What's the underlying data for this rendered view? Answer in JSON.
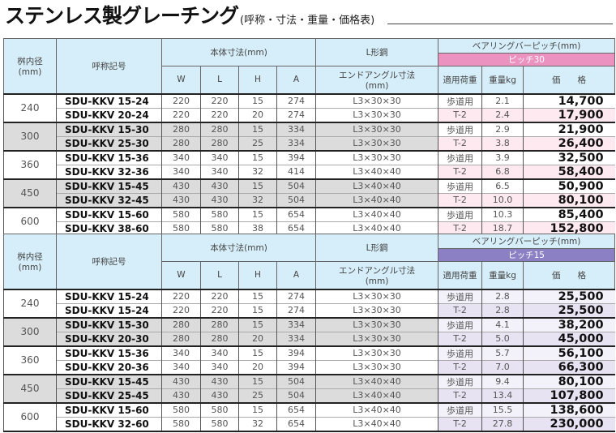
{
  "title": {
    "main": "ステンレス製グレーチング",
    "sub": "(呼称・寸法・重量・価格表)"
  },
  "headers": {
    "diameter": "桝内径\n(mm)",
    "model": "呼称記号",
    "body_dims": "本体寸法(mm)",
    "W": "W",
    "L": "L",
    "H": "H",
    "A": "A",
    "angle": "L形鋼",
    "end_angle": "エンドアングル寸法\n(mm)",
    "bearing": "ベアリングバーピッチ(mm)",
    "load": "適用荷重",
    "weight": "重量kg",
    "price": "価　　格"
  },
  "colors": {
    "header_bg": "#d6eef9",
    "pitch30": "#ec92c1",
    "pitch15": "#8b80c4"
  },
  "tables": [
    {
      "pitch": "ピッチ30",
      "groups": [
        {
          "diameter": "240",
          "rows": [
            [
              "SDU-KKV 15-24",
              "220",
              "220",
              "15",
              "274",
              "L3×30×30",
              "歩道用",
              "2.1",
              "14,700"
            ],
            [
              "SDU-KKV 20-24",
              "220",
              "220",
              "20",
              "274",
              "L3×30×30",
              "T-2",
              "2.4",
              "17,900"
            ]
          ]
        },
        {
          "diameter": "300",
          "rows": [
            [
              "SDU-KKV 15-30",
              "280",
              "280",
              "15",
              "334",
              "L3×30×30",
              "歩道用",
              "2.9",
              "21,900"
            ],
            [
              "SDU-KKV 25-30",
              "280",
              "280",
              "25",
              "334",
              "L3×30×30",
              "T-2",
              "3.8",
              "26,400"
            ]
          ]
        },
        {
          "diameter": "360",
          "rows": [
            [
              "SDU-KKV 15-36",
              "340",
              "340",
              "15",
              "394",
              "L3×30×30",
              "歩道用",
              "3.9",
              "32,500"
            ],
            [
              "SDU-KKV 32-36",
              "340",
              "340",
              "32",
              "414",
              "L3×40×40",
              "T-2",
              "6.8",
              "58,400"
            ]
          ]
        },
        {
          "diameter": "450",
          "rows": [
            [
              "SDU-KKV 15-45",
              "430",
              "430",
              "15",
              "504",
              "L3×40×40",
              "歩道用",
              "6.5",
              "50,900"
            ],
            [
              "SDU-KKV 32-45",
              "430",
              "430",
              "32",
              "504",
              "L3×40×40",
              "T-2",
              "10.0",
              "80,100"
            ]
          ]
        },
        {
          "diameter": "600",
          "rows": [
            [
              "SDU-KKV 15-60",
              "580",
              "580",
              "15",
              "654",
              "L3×40×40",
              "歩道用",
              "10.3",
              "85,400"
            ],
            [
              "SDU-KKV 38-60",
              "580",
              "580",
              "38",
              "654",
              "L3×40×40",
              "T-2",
              "18.7",
              "152,800"
            ]
          ]
        }
      ]
    },
    {
      "pitch": "ピッチ15",
      "groups": [
        {
          "diameter": "240",
          "rows": [
            [
              "SDU-KKV 15-24",
              "220",
              "220",
              "15",
              "274",
              "L3×30×30",
              "歩道用",
              "2.8",
              "25,500"
            ],
            [
              "SDU-KKV 15-24",
              "220",
              "220",
              "15",
              "274",
              "L3×30×30",
              "T-2",
              "2.8",
              "25,500"
            ]
          ]
        },
        {
          "diameter": "300",
          "rows": [
            [
              "SDU-KKV 15-30",
              "280",
              "280",
              "15",
              "334",
              "L3×30×30",
              "歩道用",
              "4.1",
              "38,200"
            ],
            [
              "SDU-KKV 20-30",
              "280",
              "280",
              "20",
              "334",
              "L3×30×30",
              "T-2",
              "5.0",
              "45,000"
            ]
          ]
        },
        {
          "diameter": "360",
          "rows": [
            [
              "SDU-KKV 15-36",
              "340",
              "340",
              "15",
              "394",
              "L3×30×30",
              "歩道用",
              "5.7",
              "56,100"
            ],
            [
              "SDU-KKV 20-36",
              "340",
              "340",
              "20",
              "394",
              "L3×30×30",
              "T-2",
              "7.0",
              "66,300"
            ]
          ]
        },
        {
          "diameter": "450",
          "rows": [
            [
              "SDU-KKV 15-45",
              "430",
              "430",
              "15",
              "504",
              "L3×40×40",
              "歩道用",
              "9.4",
              "80,100"
            ],
            [
              "SDU-KKV 25-45",
              "430",
              "430",
              "25",
              "504",
              "L3×40×40",
              "T-2",
              "13.4",
              "107,800"
            ]
          ]
        },
        {
          "diameter": "600",
          "rows": [
            [
              "SDU-KKV 15-60",
              "580",
              "580",
              "15",
              "654",
              "L3×40×40",
              "歩道用",
              "15.5",
              "138,600"
            ],
            [
              "SDU-KKV 32-60",
              "580",
              "580",
              "32",
              "654",
              "L3×40×40",
              "T-2",
              "27.8",
              "230,000"
            ]
          ]
        }
      ]
    }
  ]
}
